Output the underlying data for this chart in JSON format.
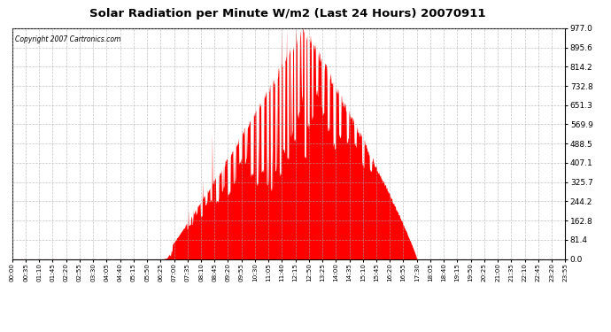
{
  "title": "Solar Radiation per Minute W/m2 (Last 24 Hours) 20070911",
  "copyright_text": "Copyright 2007 Cartronics.com",
  "background_color": "#ffffff",
  "plot_bg_color": "#ffffff",
  "bar_color": "#ff0000",
  "dashed_line_color": "#ff0000",
  "grid_color": "#aaaaaa",
  "y_max": 977.0,
  "y_ticks": [
    0.0,
    81.4,
    162.8,
    244.2,
    325.7,
    407.1,
    488.5,
    569.9,
    651.3,
    732.8,
    814.2,
    895.6,
    977.0
  ],
  "x_tick_labels": [
    "00:00",
    "00:35",
    "01:10",
    "01:45",
    "02:20",
    "02:55",
    "03:30",
    "04:05",
    "04:40",
    "05:15",
    "05:50",
    "06:25",
    "07:00",
    "07:35",
    "08:10",
    "08:45",
    "09:20",
    "09:55",
    "10:30",
    "11:05",
    "11:40",
    "12:15",
    "12:50",
    "13:25",
    "14:00",
    "14:35",
    "15:10",
    "15:45",
    "16:20",
    "16:55",
    "17:30",
    "18:05",
    "18:40",
    "19:15",
    "19:50",
    "20:25",
    "21:00",
    "21:35",
    "22:10",
    "22:45",
    "23:20",
    "23:55"
  ],
  "num_minutes": 1440,
  "sunrise_minute": 387,
  "sunset_minute": 1053,
  "peak_minute": 758,
  "peak_value": 977.0
}
